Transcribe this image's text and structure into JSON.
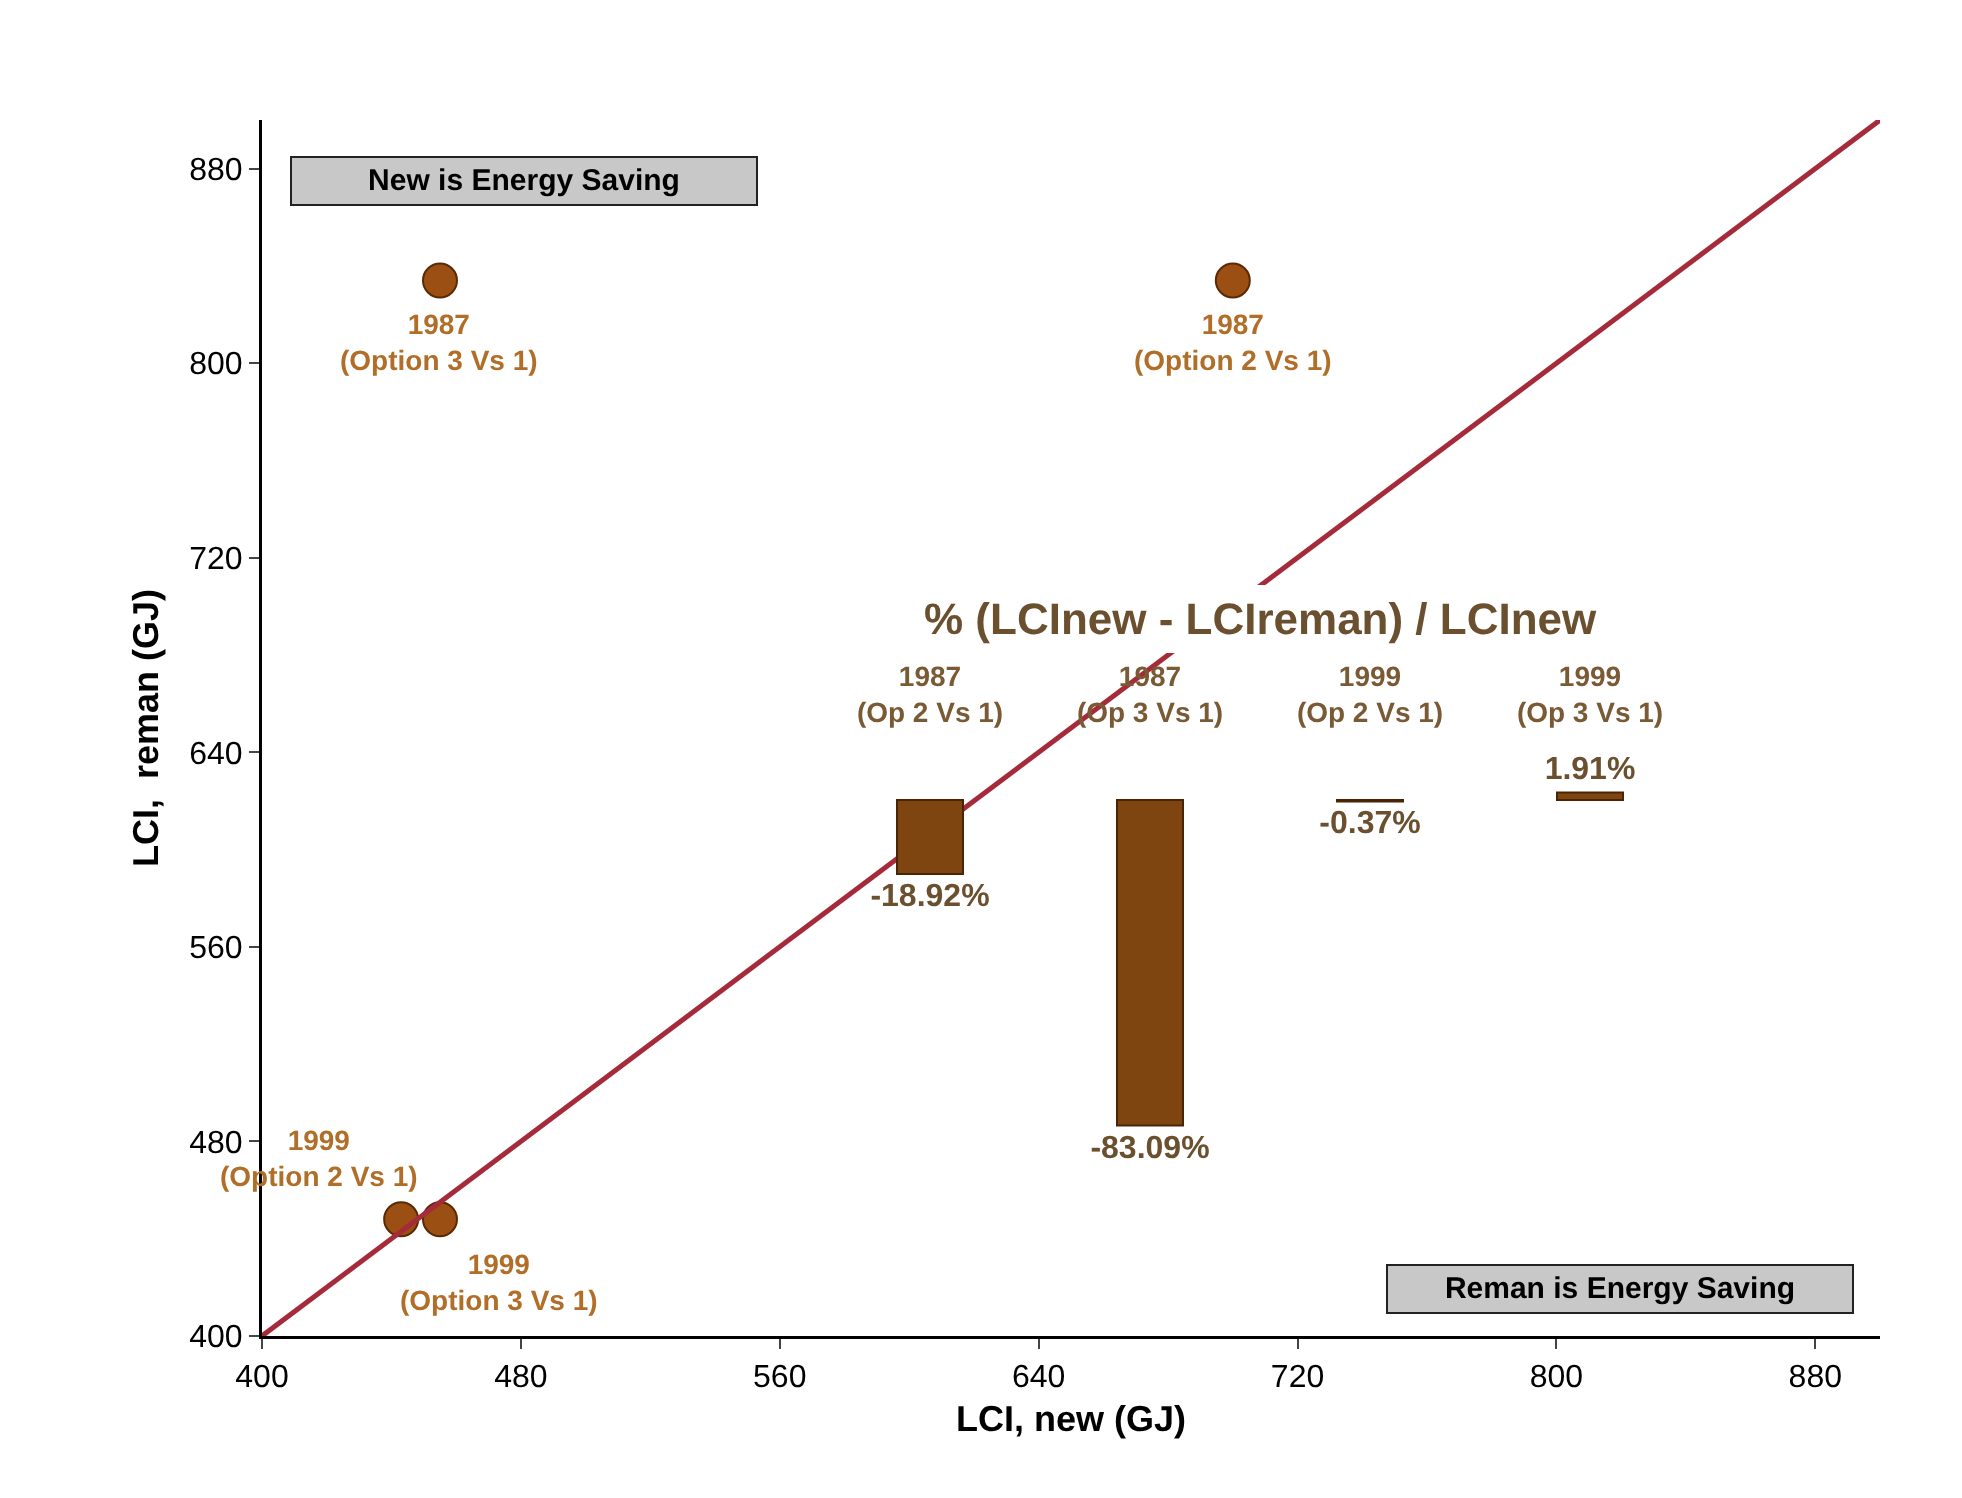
{
  "chart_data": [
    {
      "type": "scatter",
      "xlabel": "LCI, new (GJ)",
      "ylabel": "LCI,  reman (GJ)",
      "xlim": [
        400,
        900
      ],
      "ylim": [
        400,
        900
      ],
      "xticks": [
        400,
        480,
        560,
        640,
        720,
        800,
        880
      ],
      "yticks": [
        400,
        480,
        560,
        640,
        720,
        800,
        880
      ],
      "grid": false,
      "series": [
        {
          "x": [
            455,
            700,
            443,
            455
          ],
          "values": [
            834,
            834,
            448,
            448
          ],
          "color": "#9c4f12",
          "marker": "circle"
        },
        {
          "type": "line",
          "x": [
            400,
            900
          ],
          "values": [
            400,
            900
          ],
          "color": "#a52a3a",
          "line_style": "solid"
        }
      ],
      "annotations": [
        "New is Energy Saving",
        "Reman is Energy Saving",
        {
          "text": "1987\n(Option 3 Vs 1)",
          "x": 455,
          "y": 834
        },
        {
          "text": "1987\n(Option 2 Vs 1)",
          "x": 700,
          "y": 834
        },
        {
          "text": "1999\n(Option 2 Vs 1)",
          "x": 443,
          "y": 448
        },
        {
          "text": "1999\n(Option 3 Vs 1)",
          "x": 455,
          "y": 448
        }
      ]
    },
    {
      "type": "bar",
      "title": "% (LCInew - LCIreman) / LCInew",
      "categories": [
        "1987\n(Op 2 Vs 1)",
        "1987\n(Op 3 Vs 1)",
        "1999\n(Op 2 Vs 1)",
        "1999\n(Op 3 Vs 1)"
      ],
      "values": [
        -18.92,
        -83.09,
        -0.37,
        1.91
      ],
      "color": "#7f4510",
      "value_labels": [
        "-18.92%",
        "-83.09%",
        "-0.37%",
        "1.91%"
      ]
    }
  ]
}
